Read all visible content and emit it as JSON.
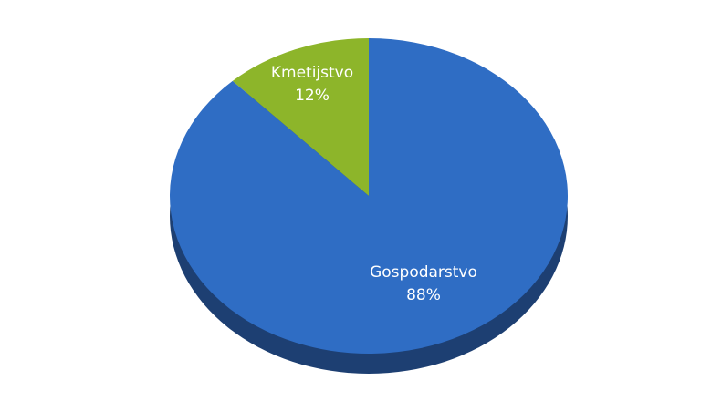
{
  "chart_data": {
    "type": "pie",
    "slices": [
      {
        "label": "Kmetijstvo",
        "value": 12,
        "value_label": "12%",
        "color": "#8db52a",
        "label_color": "#ffffff"
      },
      {
        "label": "Gospodarstvo",
        "value": 88,
        "value_label": "88%",
        "color": "#2f6dc4",
        "label_color": "#ffffff"
      }
    ],
    "start": "top",
    "direction": "counterclockwise",
    "style": "3d-tilted",
    "side_color": "#1d3f72"
  }
}
